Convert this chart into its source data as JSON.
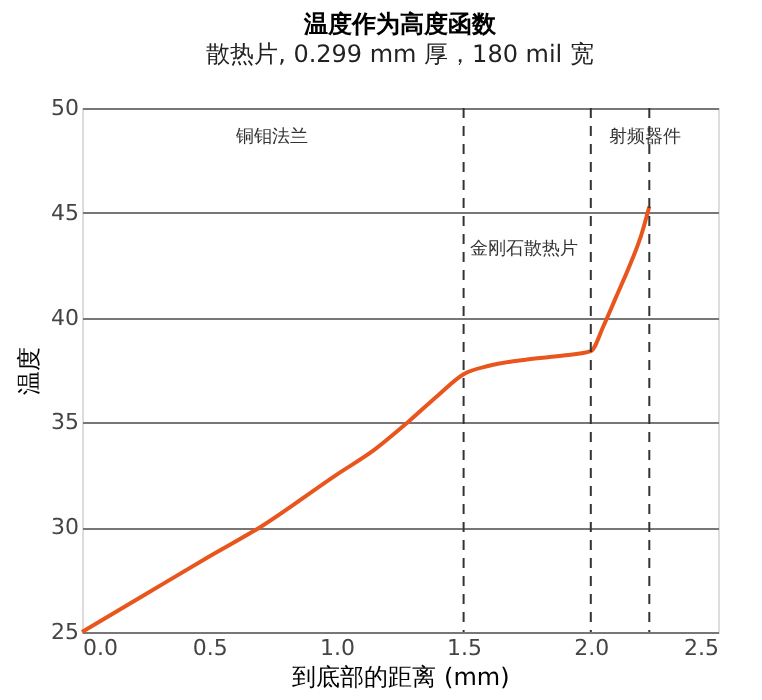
{
  "chart_data": {
    "type": "line",
    "title": "温度作为高度函数",
    "subtitle": "散热片, 0.299 mm 厚，180 mil 宽",
    "xlabel": "到底部的距离 (mm)",
    "ylabel": "温度",
    "x": [
      0,
      0.25,
      0.5,
      0.7,
      1.0,
      1.15,
      1.28,
      1.4,
      1.5,
      1.6,
      1.75,
      1.9,
      2.0,
      2.05,
      2.1,
      2.15,
      2.2,
      2.23
    ],
    "series": [
      {
        "color": "#e8561e",
        "values": [
          25,
          26.8,
          28.6,
          30,
          32.5,
          33.7,
          35,
          36.3,
          37.3,
          37.7,
          38.0,
          38.2,
          38.4,
          39.6,
          41.0,
          42.4,
          44.0,
          45.3
        ]
      }
    ],
    "xlim": [
      0,
      2.5
    ],
    "xticks": [
      {
        "value": 0,
        "label": "0.0"
      },
      0.5,
      {
        "value": 1,
        "label": "1.0"
      },
      1.5,
      {
        "value": 2,
        "label": "2.0"
      },
      2.5
    ],
    "ylim": [
      25,
      50
    ],
    "yticks": [
      25,
      30,
      35,
      40,
      45,
      50
    ],
    "grid": "y",
    "line_style": "solid",
    "ref_lines": [
      {
        "axis": "x",
        "value": 1.5,
        "line_style": "dashed",
        "color": "#333333",
        "label": "金刚石散热片"
      },
      {
        "axis": "x",
        "value": 2.0,
        "line_style": "dashed",
        "color": "#333333"
      },
      {
        "axis": "x",
        "value": 2.23,
        "line_style": "dashed",
        "color": "#333333",
        "label": "射频器件"
      }
    ],
    "annotations": [
      "铜钼法兰"
    ]
  }
}
